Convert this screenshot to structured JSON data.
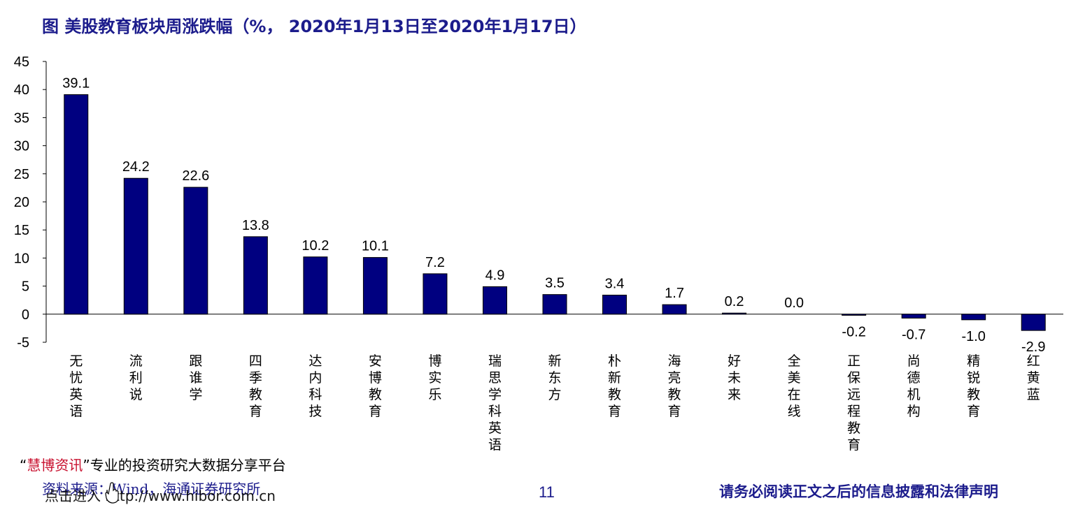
{
  "title": "图  美股教育板块周涨跌幅（%， 2020年1月13日至2020年1月17日）",
  "chart_data": {
    "type": "bar",
    "title": "图  美股教育板块周涨跌幅（%， 2020年1月13日至2020年1月17日）",
    "xlabel": "",
    "ylabel": "",
    "ylim": [
      -5,
      45
    ],
    "yticks": [
      "45",
      "40",
      "35",
      "30",
      "25",
      "20",
      "15",
      "10",
      "5",
      "0",
      "-5"
    ],
    "grid": false,
    "legend": "none",
    "bar_color": "#000080",
    "categories": [
      "无忧英语",
      "流利说",
      "跟谁学",
      "四季教育",
      "达内科技",
      "安博教育",
      "博实乐",
      "瑞思学科英语",
      "新东方",
      "朴新教育",
      "海亮教育",
      "好未来",
      "全美在线",
      "正保远程教育",
      "尚德机构",
      "精锐教育",
      "红黄蓝"
    ],
    "values": [
      39.1,
      24.2,
      22.6,
      13.8,
      10.2,
      10.1,
      7.2,
      4.9,
      3.5,
      3.4,
      1.7,
      0.2,
      0.0,
      -0.2,
      -0.7,
      -1.0,
      -2.9
    ],
    "data_labels": [
      "39.1",
      "24.2",
      "22.6",
      "13.8",
      "10.2",
      "10.1",
      "7.2",
      "4.9",
      "3.5",
      "3.4",
      "1.7",
      "0.2",
      "0.0",
      "-0.2",
      "-0.7",
      "-1.0",
      "-2.9"
    ]
  },
  "footer": {
    "promo_open_quote": "“",
    "promo_brand": "慧博资讯",
    "promo_close_quote": "”",
    "promo_text": "专业的投资研究大数据分享平台",
    "source": "资料来源：Wind，海通证券研究所",
    "link": "点击进入      http://www.hibor.com.cn",
    "hand_icon": "pointing-hand-icon",
    "page_number": "11",
    "disclaimer": "请务必阅读正文之后的信息披露和法律声明"
  },
  "colors": {
    "title": "#1c1c8c",
    "bar": "#000080",
    "brand": "#c8102e"
  }
}
